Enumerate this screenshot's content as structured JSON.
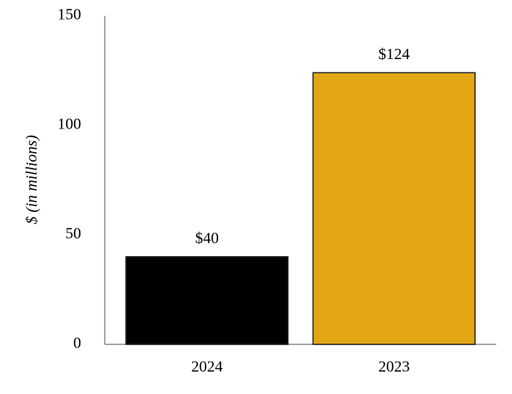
{
  "chart_data": {
    "type": "bar",
    "y_label": "$ (in millions)",
    "categories": [
      "2024",
      "2023"
    ],
    "values": [
      40,
      124
    ],
    "value_labels": [
      "$40",
      "$124"
    ],
    "colors": [
      "#000000",
      "#e3a614"
    ],
    "ylim": [
      0,
      150
    ],
    "yticks": [
      0,
      50,
      100,
      150
    ],
    "grid": false
  }
}
